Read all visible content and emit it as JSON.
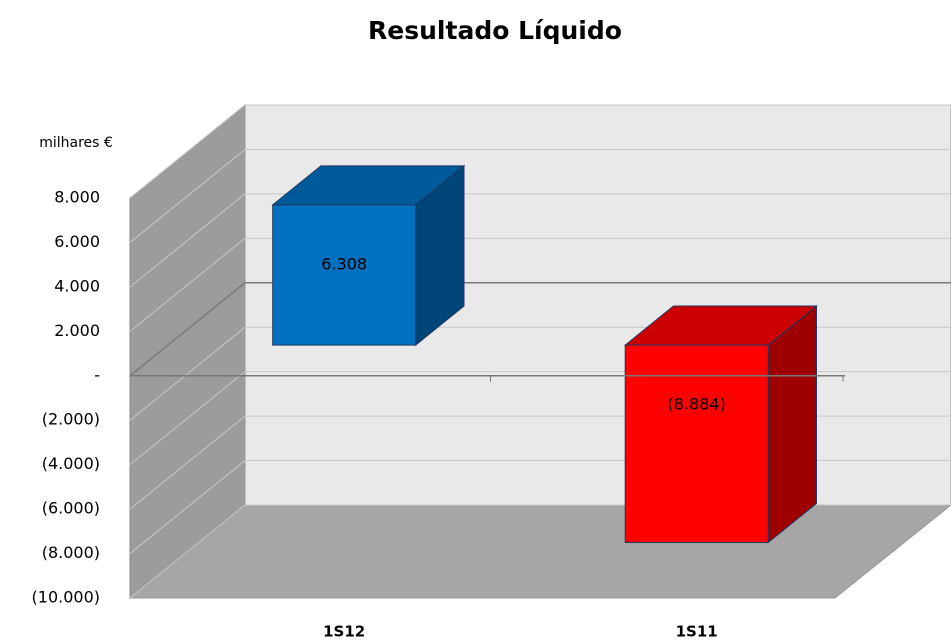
{
  "chart_data": {
    "type": "bar3d",
    "title": "Resultado Líquido",
    "y_label": "milhares €",
    "categories": [
      "1S12",
      "1S11"
    ],
    "values": [
      6308,
      -8884
    ],
    "value_labels": [
      "6.308",
      "(8.884)"
    ],
    "colors": [
      "#0070c0",
      "#ff0000"
    ],
    "ylim": [
      -10000,
      8000
    ],
    "yticks": [
      {
        "value": 8000,
        "label": "8.000"
      },
      {
        "value": 6000,
        "label": "6.000"
      },
      {
        "value": 4000,
        "label": "4.000"
      },
      {
        "value": 2000,
        "label": "2.000"
      },
      {
        "value": 0,
        "label": "-"
      },
      {
        "value": -2000,
        "label": "(2.000)"
      },
      {
        "value": -4000,
        "label": "(4.000)"
      },
      {
        "value": -6000,
        "label": "(6.000)"
      },
      {
        "value": -8000,
        "label": "(8.000)"
      },
      {
        "value": -10000,
        "label": "(10.000)"
      }
    ],
    "grid": true
  }
}
